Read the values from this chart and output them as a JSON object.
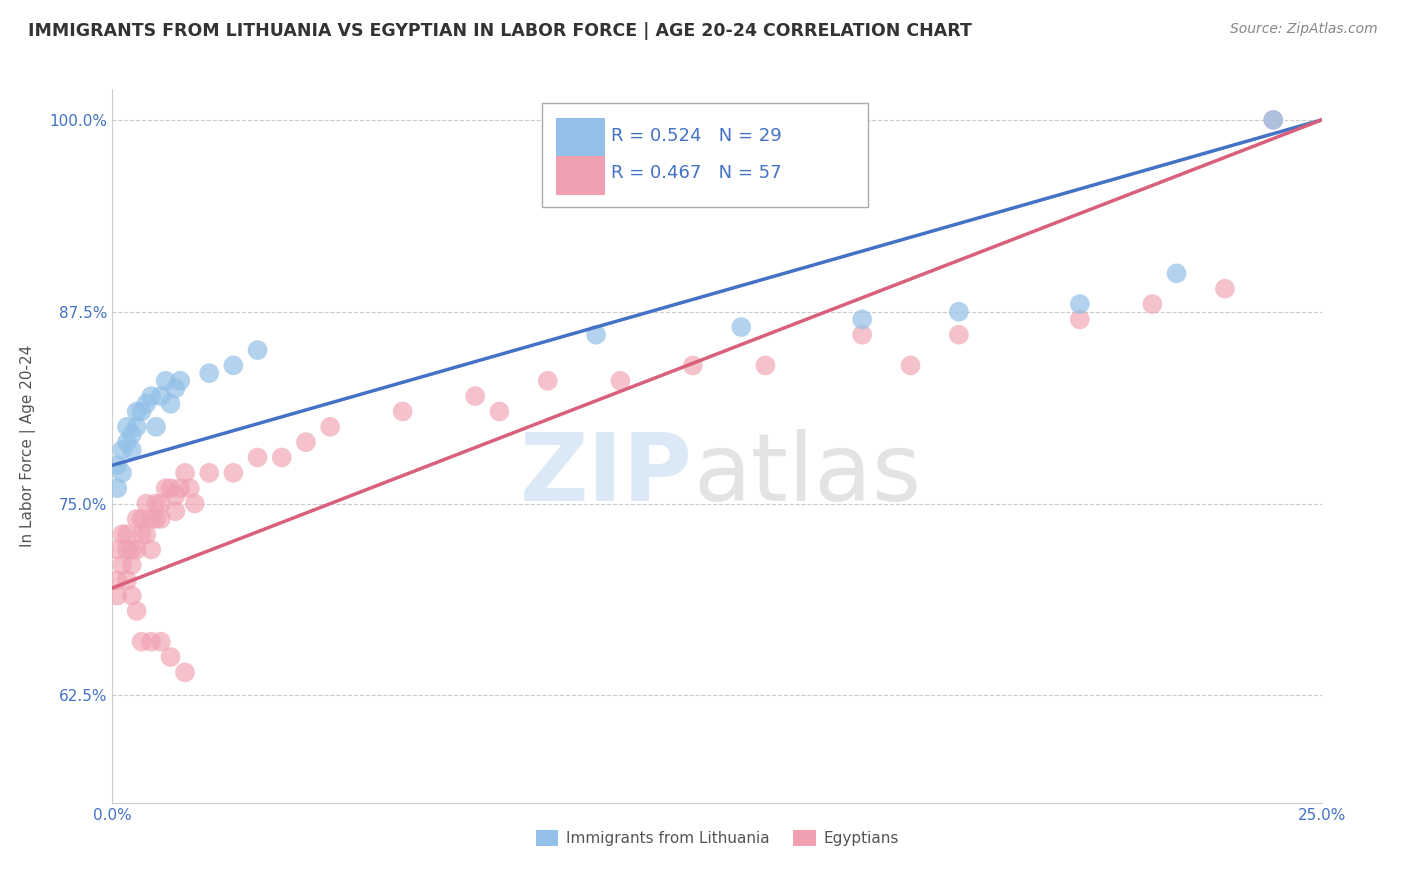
{
  "title": "IMMIGRANTS FROM LITHUANIA VS EGYPTIAN IN LABOR FORCE | AGE 20-24 CORRELATION CHART",
  "source": "Source: ZipAtlas.com",
  "ylabel": "In Labor Force | Age 20-24",
  "xlim": [
    0.0,
    0.25
  ],
  "ylim": [
    0.555,
    1.02
  ],
  "yticks": [
    0.625,
    0.75,
    0.875,
    1.0
  ],
  "ytick_labels": [
    "62.5%",
    "75.0%",
    "87.5%",
    "100.0%"
  ],
  "xticks": [
    0.0,
    0.25
  ],
  "xtick_labels": [
    "0.0%",
    "25.0%"
  ],
  "blue_color": "#92c0e8",
  "pink_color": "#f0a0b0",
  "blue_line_color": "#4472c4",
  "pink_line_color": "#d9607a",
  "R_blue": 0.524,
  "N_blue": 29,
  "R_pink": 0.467,
  "N_pink": 57,
  "legend_label_blue": "Immigrants from Lithuania",
  "legend_label_pink": "Egyptians",
  "blue_x": [
    0.001,
    0.001,
    0.002,
    0.002,
    0.003,
    0.003,
    0.004,
    0.004,
    0.005,
    0.005,
    0.006,
    0.007,
    0.008,
    0.009,
    0.01,
    0.011,
    0.012,
    0.013,
    0.014,
    0.02,
    0.025,
    0.03,
    0.1,
    0.13,
    0.155,
    0.175,
    0.2,
    0.22,
    0.24
  ],
  "blue_y": [
    0.775,
    0.76,
    0.77,
    0.785,
    0.79,
    0.8,
    0.785,
    0.795,
    0.8,
    0.81,
    0.81,
    0.815,
    0.82,
    0.8,
    0.82,
    0.83,
    0.815,
    0.825,
    0.83,
    0.835,
    0.84,
    0.85,
    0.86,
    0.865,
    0.87,
    0.875,
    0.88,
    0.9,
    1.0
  ],
  "pink_x": [
    0.001,
    0.001,
    0.001,
    0.002,
    0.002,
    0.003,
    0.003,
    0.003,
    0.004,
    0.004,
    0.005,
    0.005,
    0.006,
    0.006,
    0.007,
    0.007,
    0.008,
    0.008,
    0.009,
    0.009,
    0.01,
    0.01,
    0.011,
    0.012,
    0.013,
    0.013,
    0.014,
    0.015,
    0.016,
    0.017,
    0.02,
    0.025,
    0.03,
    0.035,
    0.04,
    0.045,
    0.06,
    0.075,
    0.08,
    0.09,
    0.105,
    0.12,
    0.135,
    0.155,
    0.165,
    0.175,
    0.2,
    0.215,
    0.23,
    0.004,
    0.005,
    0.006,
    0.008,
    0.01,
    0.012,
    0.015,
    0.24
  ],
  "pink_y": [
    0.72,
    0.7,
    0.69,
    0.73,
    0.71,
    0.73,
    0.72,
    0.7,
    0.72,
    0.71,
    0.74,
    0.72,
    0.74,
    0.73,
    0.75,
    0.73,
    0.74,
    0.72,
    0.75,
    0.74,
    0.75,
    0.74,
    0.76,
    0.76,
    0.755,
    0.745,
    0.76,
    0.77,
    0.76,
    0.75,
    0.77,
    0.77,
    0.78,
    0.78,
    0.79,
    0.8,
    0.81,
    0.82,
    0.81,
    0.83,
    0.83,
    0.84,
    0.84,
    0.86,
    0.84,
    0.86,
    0.87,
    0.88,
    0.89,
    0.69,
    0.68,
    0.66,
    0.66,
    0.66,
    0.65,
    0.64,
    1.0
  ]
}
